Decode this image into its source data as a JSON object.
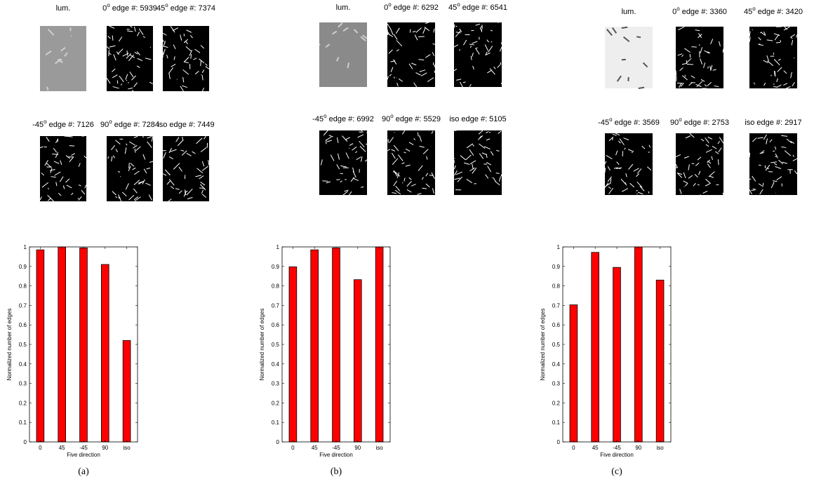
{
  "chart_data": [
    {
      "type": "bar",
      "caption": "(a)",
      "xlabel": "Five direction",
      "ylabel": "Normalized number of edges",
      "categories": [
        "0",
        "45",
        "-45",
        "90",
        "iso"
      ],
      "values": [
        0.985,
        1.0,
        0.995,
        0.91,
        0.52
      ],
      "color": "#ff0000",
      "ylim": [
        0,
        1
      ],
      "yticks": [
        0,
        0.1,
        0.2,
        0.3,
        0.4,
        0.5,
        0.6,
        0.7,
        0.8,
        0.9,
        1
      ]
    },
    {
      "type": "bar",
      "caption": "(b)",
      "xlabel": "Five direction",
      "ylabel": "Normalized number of edges",
      "categories": [
        "0",
        "45",
        "-45",
        "90",
        "iso"
      ],
      "values": [
        0.898,
        0.985,
        0.995,
        0.832,
        1.0
      ],
      "color": "#ff0000",
      "ylim": [
        0,
        1
      ],
      "yticks": [
        0,
        0.1,
        0.2,
        0.3,
        0.4,
        0.5,
        0.6,
        0.7,
        0.8,
        0.9,
        1
      ]
    },
    {
      "type": "bar",
      "caption": "(c)",
      "xlabel": "Five direction",
      "ylabel": "Normalized number of edges",
      "categories": [
        "0",
        "45",
        "-45",
        "90",
        "iso"
      ],
      "values": [
        0.703,
        0.972,
        0.895,
        1.0,
        0.83
      ],
      "color": "#ff0000",
      "ylim": [
        0,
        1
      ],
      "yticks": [
        0,
        0.1,
        0.2,
        0.3,
        0.4,
        0.5,
        0.6,
        0.7,
        0.8,
        0.9,
        1
      ]
    }
  ],
  "panels": [
    {
      "images": [
        {
          "post": "lum."
        },
        {
          "pre": "0",
          "sup": "o",
          "post": " edge #: 5939"
        },
        {
          "pre": "45",
          "sup": "o",
          "post": " edge #: 7374"
        },
        {
          "pre": "-45",
          "sup": "o",
          "post": " edge #: 7126"
        },
        {
          "pre": "90",
          "sup": "o",
          "post": " edge #: 7284"
        },
        {
          "post": "iso edge #: 7449"
        }
      ]
    },
    {
      "images": [
        {
          "post": "lum."
        },
        {
          "pre": "0",
          "sup": "o",
          "post": " edge #: 6292"
        },
        {
          "pre": "45",
          "sup": "o",
          "post": " edge #: 6541"
        },
        {
          "pre": "-45",
          "sup": "o",
          "post": " edge #: 6992"
        },
        {
          "pre": "90",
          "sup": "o",
          "post": " edge #: 5529"
        },
        {
          "post": "iso edge #: 5105"
        }
      ]
    },
    {
      "images": [
        {
          "post": "lum."
        },
        {
          "pre": "0",
          "sup": "o",
          "post": " edge #: 3360"
        },
        {
          "pre": "45",
          "sup": "o",
          "post": " edge #: 3420"
        },
        {
          "pre": "-45",
          "sup": "o",
          "post": " edge #: 3569"
        },
        {
          "pre": "90",
          "sup": "o",
          "post": " edge #: 2753"
        },
        {
          "post": "iso edge #: 2917"
        }
      ]
    }
  ]
}
